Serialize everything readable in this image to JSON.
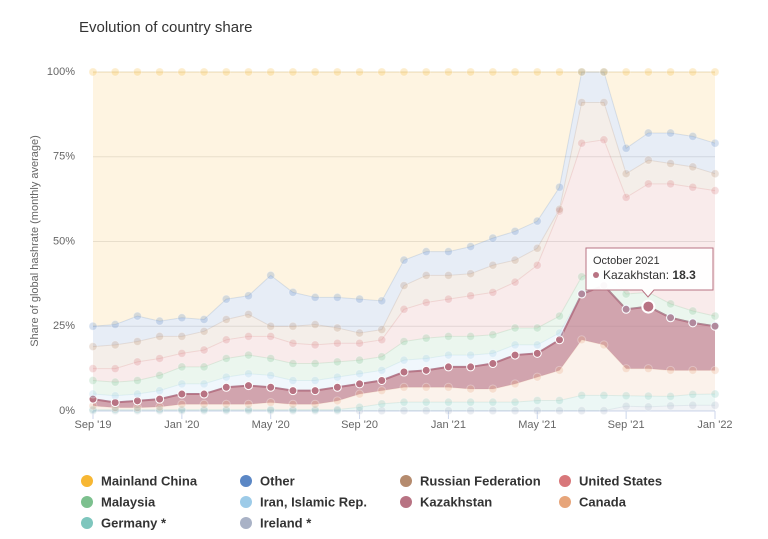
{
  "chart_data": {
    "type": "stacked-area",
    "title": "Evolution of country share",
    "ylabel": "Share of global hashrate (monthly average)",
    "categories": [
      "Sep '19",
      null,
      null,
      null,
      "Jan '20",
      null,
      null,
      null,
      "May '20",
      null,
      null,
      null,
      "Sep '20",
      null,
      null,
      null,
      "Jan '21",
      null,
      null,
      null,
      "May '21",
      null,
      null,
      null,
      "Sep '21",
      null,
      null,
      null,
      "Jan '22"
    ],
    "ylim": [
      0,
      100
    ],
    "yticks": [
      {
        "value": 0,
        "label": "0%"
      },
      {
        "value": 25,
        "label": "25%"
      },
      {
        "value": 50,
        "label": "50%"
      },
      {
        "value": 75,
        "label": "75%"
      },
      {
        "value": 100,
        "label": "100%"
      }
    ],
    "grid": true,
    "highlighted_series": 6,
    "series": [
      {
        "name": "Mainland China",
        "color": "#f7b733",
        "values": [
          75,
          74.5,
          72,
          73.5,
          72.5,
          73,
          67,
          66,
          60,
          65,
          66.5,
          66.5,
          67,
          67.5,
          55.5,
          53,
          53,
          51.5,
          49,
          47,
          44,
          34,
          0,
          0,
          22.5,
          18,
          18,
          19,
          21
        ]
      },
      {
        "name": "Other",
        "color": "#5b87c5",
        "values": [
          6,
          6,
          7.5,
          4.5,
          5.5,
          3.5,
          6,
          5.5,
          15,
          10,
          8,
          9,
          10,
          8.5,
          7.5,
          7,
          7,
          8,
          8,
          8.5,
          8,
          6.5,
          9,
          9,
          7.5,
          8,
          9,
          9,
          9
        ]
      },
      {
        "name": "Russian Federation",
        "color": "#b58b6e",
        "values": [
          6.5,
          7,
          6,
          6.5,
          5,
          5.5,
          6,
          6.5,
          3,
          5,
          6,
          4.5,
          3,
          3,
          7,
          8,
          7,
          6.5,
          8,
          6.5,
          5,
          0.5,
          12,
          11,
          7,
          7,
          6,
          6,
          5
        ]
      },
      {
        "name": "United States",
        "color": "#d8777a",
        "values": [
          3.5,
          4,
          5.5,
          5,
          4,
          5,
          5.5,
          5.5,
          6.5,
          6,
          5.5,
          5.5,
          5,
          5,
          9.5,
          10.5,
          11,
          12,
          12.5,
          13.5,
          18.5,
          31,
          39.4,
          37.9,
          28.5,
          32,
          35.4,
          36.5,
          37
        ]
      },
      {
        "name": "Malaysia",
        "color": "#7cc08e",
        "values": [
          4,
          4,
          4,
          4.5,
          5,
          5,
          5.5,
          5.5,
          5,
          5,
          5,
          4.5,
          4,
          4,
          5.5,
          6,
          5.5,
          5.5,
          5.5,
          5,
          5,
          5,
          5,
          5,
          4.4,
          4.1,
          4,
          3.4,
          2.9
        ]
      },
      {
        "name": "Iran, Islamic Rep.",
        "color": "#9dcbe8",
        "values": [
          1.5,
          2,
          2,
          2.5,
          3,
          3,
          3,
          3.5,
          3.5,
          3,
          3,
          3,
          3,
          3,
          3.5,
          3.5,
          3.5,
          3.5,
          3,
          3,
          2.5,
          2,
          0.1,
          0.1,
          0.1,
          0.1,
          0.1,
          0.1,
          0.1
        ]
      },
      {
        "name": "Kazakhstan",
        "color": "#b87383",
        "values": [
          2,
          1.5,
          2,
          2.3,
          3,
          3,
          5,
          5.5,
          4.5,
          4,
          4,
          4,
          3,
          3,
          4.5,
          5,
          6,
          6.5,
          7.5,
          8.5,
          7,
          9,
          13.5,
          17.5,
          17.5,
          18.3,
          15.5,
          14,
          13
        ]
      },
      {
        "name": "Canada",
        "color": "#e7a57a",
        "values": [
          1.1,
          0.6,
          0.6,
          0.8,
          1.6,
          1.6,
          1.6,
          1.6,
          2.1,
          1.6,
          1.6,
          2.6,
          3.9,
          3.9,
          4.4,
          4.4,
          4.4,
          3.9,
          3.9,
          5.4,
          6.9,
          8.9,
          16.4,
          14.9,
          8,
          8.1,
          7.7,
          7.1,
          7
        ]
      },
      {
        "name": "Germany *",
        "color": "#7ec6bd",
        "values": [
          0.3,
          0.3,
          0.3,
          0.3,
          0.3,
          0.3,
          0.3,
          0.3,
          0.3,
          0.3,
          0.3,
          0.3,
          1,
          2,
          2.5,
          2.5,
          2.5,
          2.5,
          2.5,
          2.5,
          3,
          3,
          4.5,
          4.5,
          3.1,
          3.2,
          2.8,
          3.2,
          3.3
        ]
      },
      {
        "name": "Ireland *",
        "color": "#a9b2c6",
        "values": [
          0.1,
          0.1,
          0.1,
          0.1,
          0.1,
          0.1,
          0.1,
          0.1,
          0.1,
          0.1,
          0.1,
          0.1,
          0.1,
          0.1,
          0.1,
          0.1,
          0.1,
          0.1,
          0.1,
          0.1,
          0.1,
          0.1,
          0.1,
          0.1,
          1.4,
          1.2,
          1.5,
          1.7,
          1.7
        ]
      }
    ],
    "tooltip": {
      "title": "October 2021",
      "series": 6,
      "point": 25
    }
  }
}
